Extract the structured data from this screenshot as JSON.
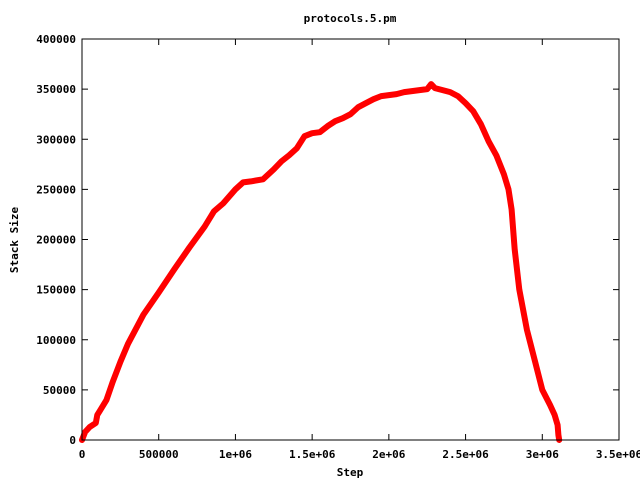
{
  "chart_data": {
    "type": "line",
    "title": "protocols.5.pm",
    "xlabel": "Step",
    "ylabel": "Stack Size",
    "xlim": [
      0,
      3500000
    ],
    "ylim": [
      0,
      400000
    ],
    "grid": false,
    "legend": "none",
    "xticks": [
      {
        "value": 0,
        "label": "0"
      },
      {
        "value": 500000,
        "label": "500000"
      },
      {
        "value": 1000000,
        "label": "1e+06"
      },
      {
        "value": 1500000,
        "label": "1.5e+06"
      },
      {
        "value": 2000000,
        "label": "2e+06"
      },
      {
        "value": 2500000,
        "label": "2.5e+06"
      },
      {
        "value": 3000000,
        "label": "3e+06"
      },
      {
        "value": 3500000,
        "label": "3.5e+06"
      }
    ],
    "yticks": [
      {
        "value": 0,
        "label": "0"
      },
      {
        "value": 50000,
        "label": "50000"
      },
      {
        "value": 100000,
        "label": "100000"
      },
      {
        "value": 150000,
        "label": "150000"
      },
      {
        "value": 200000,
        "label": "200000"
      },
      {
        "value": 250000,
        "label": "250000"
      },
      {
        "value": 300000,
        "label": "300000"
      },
      {
        "value": 350000,
        "label": "350000"
      },
      {
        "value": 400000,
        "label": "400000"
      }
    ],
    "series": [
      {
        "color": "#ff0000",
        "x": [
          0,
          20000,
          50000,
          90000,
          100000,
          120000,
          160000,
          200000,
          250000,
          300000,
          400000,
          500000,
          600000,
          700000,
          800000,
          860000,
          920000,
          960000,
          1000000,
          1050000,
          1100000,
          1180000,
          1250000,
          1300000,
          1350000,
          1400000,
          1450000,
          1500000,
          1550000,
          1600000,
          1650000,
          1700000,
          1750000,
          1800000,
          1850000,
          1900000,
          1950000,
          2000000,
          2050000,
          2100000,
          2150000,
          2200000,
          2250000,
          2275000,
          2300000,
          2350000,
          2400000,
          2450000,
          2500000,
          2550000,
          2600000,
          2650000,
          2700000,
          2750000,
          2780000,
          2800000,
          2820000,
          2850000,
          2900000,
          2950000,
          3000000,
          3050000,
          3080000,
          3100000,
          3105000,
          3110000
        ],
        "y": [
          0,
          8000,
          13000,
          17000,
          25000,
          30000,
          40000,
          58000,
          78000,
          96000,
          125000,
          147000,
          170000,
          192000,
          213000,
          228000,
          236000,
          243000,
          250000,
          257000,
          258000,
          260000,
          270000,
          278000,
          284000,
          291000,
          303000,
          306000,
          307000,
          313000,
          318000,
          321000,
          325000,
          332000,
          336000,
          340000,
          343000,
          344000,
          345000,
          347000,
          348000,
          349000,
          350000,
          355000,
          351000,
          349000,
          347000,
          343000,
          336000,
          328000,
          315000,
          298000,
          284000,
          265000,
          250000,
          230000,
          190000,
          150000,
          110000,
          80000,
          50000,
          35000,
          25000,
          15000,
          5000,
          0
        ]
      }
    ]
  }
}
